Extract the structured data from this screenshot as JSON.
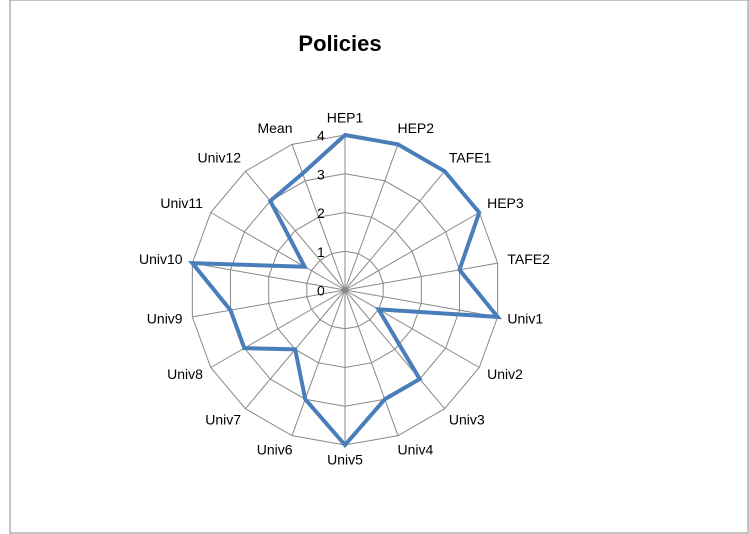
{
  "chart_data": {
    "type": "radar",
    "title": "Policies",
    "categories": [
      "HEP1",
      "HEP2",
      "TAFE1",
      "HEP3",
      "TAFE2",
      "Univ1",
      "Univ2",
      "Univ3",
      "Univ4",
      "Univ5",
      "Univ6",
      "Univ7",
      "Univ8",
      "Univ9",
      "Univ10",
      "Univ11",
      "Univ12",
      "Mean"
    ],
    "values": [
      4,
      4,
      4,
      4,
      3,
      4,
      1,
      3,
      3,
      4,
      3,
      2,
      3,
      3,
      4,
      1.2,
      3,
      3.2
    ],
    "color": "#4a7ebb",
    "ylim": [
      0,
      4
    ],
    "yticks": [
      0,
      1,
      2,
      3,
      4
    ],
    "grid": true
  }
}
